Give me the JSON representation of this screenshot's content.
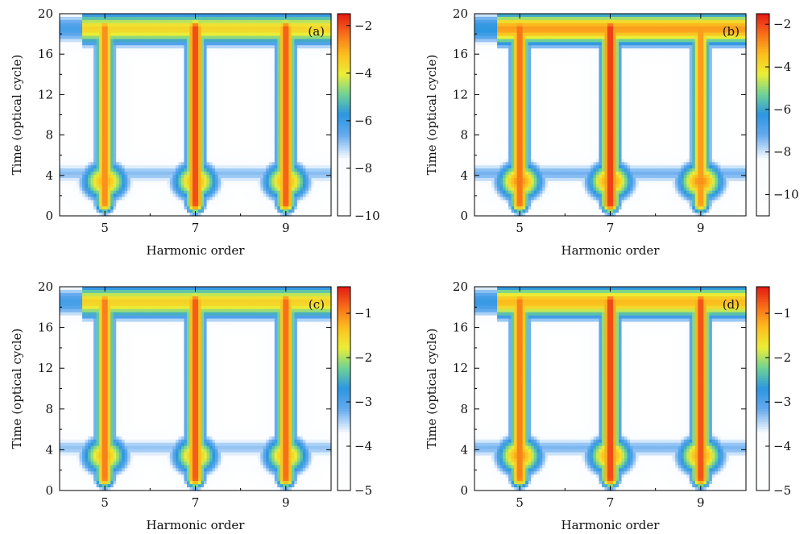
{
  "chart_data": [
    {
      "type": "heatmap",
      "panel_label": "(a)",
      "xlabel": "Harmonic order",
      "ylabel": "Time (optical cycle)",
      "xlim": [
        4,
        10
      ],
      "ylim": [
        0,
        20
      ],
      "xticks": [
        5,
        7,
        9
      ],
      "yticks": [
        0,
        4,
        8,
        12,
        16,
        20
      ],
      "colorbar": {
        "ticks": [
          -2,
          -4,
          -6,
          -8,
          -10
        ],
        "range": [
          -10,
          -1.5
        ]
      },
      "features": {
        "columns": [
          5,
          7,
          9
        ],
        "column_peak": [
          -2.6,
          -1.9,
          -2.1
        ],
        "top_band": -3.6,
        "bottom_lobe": -3.0
      }
    },
    {
      "type": "heatmap",
      "panel_label": "(b)",
      "xlabel": "Harmonic order",
      "ylabel": "Time (optical cycle)",
      "xlim": [
        4,
        10
      ],
      "ylim": [
        0,
        20
      ],
      "xticks": [
        5,
        7,
        9
      ],
      "yticks": [
        0,
        4,
        8,
        12,
        16,
        20
      ],
      "colorbar": {
        "ticks": [
          -2,
          -4,
          -6,
          -8,
          -10
        ],
        "range": [
          -11,
          -1.5
        ]
      },
      "features": {
        "columns": [
          5,
          7,
          9
        ],
        "column_peak": [
          -2.4,
          -1.8,
          -2.9
        ],
        "top_band": -3.0,
        "bottom_lobe": -2.8
      }
    },
    {
      "type": "heatmap",
      "panel_label": "(c)",
      "xlabel": "Harmonic order",
      "ylabel": "Time (optical cycle)",
      "xlim": [
        4,
        10
      ],
      "ylim": [
        0,
        20
      ],
      "xticks": [
        5,
        7,
        9
      ],
      "yticks": [
        0,
        4,
        8,
        12,
        16,
        20
      ],
      "colorbar": {
        "ticks": [
          -1,
          -2,
          -3,
          -4,
          -5
        ],
        "range": [
          -5,
          -0.4
        ]
      },
      "features": {
        "columns": [
          5,
          7,
          9
        ],
        "column_peak": [
          -0.9,
          -0.7,
          -0.8
        ],
        "top_band": -1.5,
        "bottom_lobe": -1.3
      }
    },
    {
      "type": "heatmap",
      "panel_label": "(d)",
      "xlabel": "Harmonic order",
      "ylabel": "Time (optical cycle)",
      "xlim": [
        4,
        10
      ],
      "ylim": [
        0,
        20
      ],
      "xticks": [
        5,
        7,
        9
      ],
      "yticks": [
        0,
        4,
        8,
        12,
        16,
        20
      ],
      "colorbar": {
        "ticks": [
          -1,
          -2,
          -3,
          -4,
          -5
        ],
        "range": [
          -5,
          -0.4
        ]
      },
      "features": {
        "columns": [
          5,
          7,
          9
        ],
        "column_peak": [
          -0.9,
          -0.6,
          -0.65
        ],
        "top_band": -1.3,
        "bottom_lobe": -1.1
      }
    }
  ]
}
